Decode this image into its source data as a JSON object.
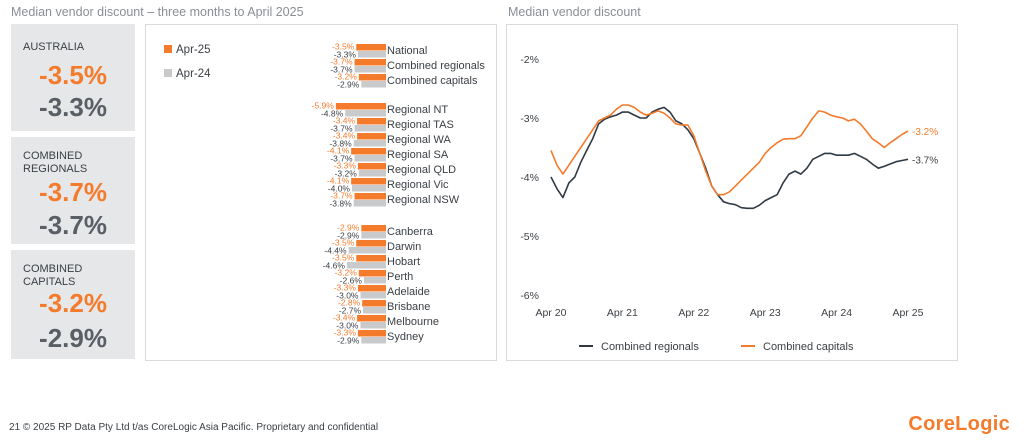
{
  "page": {
    "left_title": "Median vendor discount – three months to April 2025",
    "right_title": "Median vendor discount",
    "footer": "21   © 2025 RP Data Pty Ltd t/as CoreLogic Asia Pacific. Proprietary and confidential",
    "logo": "CoreLogic"
  },
  "kpis": [
    {
      "label": "AUSTRALIA",
      "current": "-3.5%",
      "previous": "-3.3%"
    },
    {
      "label": "COMBINED REGIONALS",
      "current": "-3.7%",
      "previous": "-3.7%"
    },
    {
      "label": "COMBINED CAPITALS",
      "current": "-3.2%",
      "previous": "-2.9%"
    }
  ],
  "colors": {
    "orange": "#f47b2c",
    "grey": "#c9cacc",
    "dark": "#2f3a44"
  },
  "chart_data": [
    {
      "type": "bar",
      "orientation": "horizontal",
      "legend": [
        "Apr-25",
        "Apr-24"
      ],
      "legend_position": "top-left",
      "groups": [
        [
          "National",
          "Combined regionals",
          "Combined capitals"
        ],
        [
          "Regional NT",
          "Regional TAS",
          "Regional WA",
          "Regional SA",
          "Regional QLD",
          "Regional Vic",
          "Regional NSW"
        ],
        [
          "Canberra",
          "Darwin",
          "Hobart",
          "Perth",
          "Adelaide",
          "Brisbane",
          "Melbourne",
          "Sydney"
        ]
      ],
      "series": [
        {
          "name": "Apr-25",
          "values": [
            -3.5,
            -3.7,
            -3.2,
            -5.9,
            -3.4,
            -3.4,
            -4.1,
            -3.3,
            -4.1,
            -3.7,
            -2.9,
            -3.5,
            -3.5,
            -3.2,
            -3.3,
            -2.8,
            -3.4,
            -3.3
          ]
        },
        {
          "name": "Apr-24",
          "values": [
            -3.3,
            -3.7,
            -2.9,
            -4.8,
            -3.7,
            -3.8,
            -3.7,
            -3.2,
            -4.0,
            -3.8,
            -2.9,
            -4.4,
            -4.6,
            -2.6,
            -3.0,
            -2.7,
            -3.0,
            -2.9
          ]
        }
      ],
      "value_labels": {
        "Apr-25": [
          "-3.5%",
          "-3.7%",
          "-3.2%",
          "-5.9%",
          "-3.4%",
          "-3.4%",
          "-4.1%",
          "-3.3%",
          "-4.1%",
          "-3.7%",
          "-2.9%",
          "-3.5%",
          "-3.5%",
          "-3.2%",
          "-3.3%",
          "-2.8%",
          "-3.4%",
          "-3.3%"
        ],
        "Apr-24": [
          "-3.3%",
          "-3.7%",
          "-2.9%",
          "-4.8%",
          "-3.7%",
          "-3.8%",
          "-3.7%",
          "-3.2%",
          "-4.0%",
          "-3.8%",
          "-2.9%",
          "-4.4%",
          "-4.6%",
          "-2.6%",
          "-3.0%",
          "-2.7%",
          "-3.0%",
          "-2.9%"
        ]
      }
    },
    {
      "type": "line",
      "x_ticks": [
        "Apr 20",
        "Apr 21",
        "Apr 22",
        "Apr 23",
        "Apr 24",
        "Apr 25"
      ],
      "y_ticks": [
        "-2%",
        "-3%",
        "-4%",
        "-5%",
        "-6%"
      ],
      "ylim": [
        -6,
        -2
      ],
      "xlim": [
        0,
        60
      ],
      "legend_position": "bottom",
      "series": [
        {
          "name": "Combined regionals",
          "end_label": "-3.7%",
          "x": [
            0,
            1,
            2,
            3,
            4,
            5,
            6,
            7,
            8,
            9,
            10,
            11,
            12,
            13,
            14,
            15,
            16,
            17,
            18,
            19,
            20,
            21,
            22,
            23,
            24,
            25,
            26,
            27,
            28,
            29,
            30,
            31,
            32,
            33,
            34,
            35,
            36,
            37,
            38,
            39,
            40,
            41,
            42,
            43,
            44,
            45,
            46,
            47,
            48,
            49,
            50,
            51,
            52,
            53,
            54,
            55,
            56,
            57,
            58,
            59,
            60
          ],
          "y": [
            -4.0,
            -4.2,
            -4.35,
            -4.1,
            -4.0,
            -3.75,
            -3.55,
            -3.35,
            -3.1,
            -3.02,
            -2.98,
            -2.95,
            -2.9,
            -2.9,
            -2.95,
            -3.0,
            -3.0,
            -2.9,
            -2.85,
            -2.82,
            -2.9,
            -3.05,
            -3.1,
            -3.2,
            -3.35,
            -3.6,
            -3.85,
            -4.15,
            -4.3,
            -4.42,
            -4.45,
            -4.47,
            -4.52,
            -4.53,
            -4.53,
            -4.48,
            -4.4,
            -4.35,
            -4.3,
            -4.1,
            -3.95,
            -3.9,
            -3.95,
            -3.85,
            -3.7,
            -3.65,
            -3.6,
            -3.6,
            -3.63,
            -3.63,
            -3.63,
            -3.6,
            -3.65,
            -3.7,
            -3.78,
            -3.85,
            -3.82,
            -3.78,
            -3.74,
            -3.72,
            -3.7
          ]
        },
        {
          "name": "Combined capitals",
          "end_label": "-3.2%",
          "x": [
            0,
            1,
            2,
            3,
            4,
            5,
            6,
            7,
            8,
            9,
            10,
            11,
            12,
            13,
            14,
            15,
            16,
            17,
            18,
            19,
            20,
            21,
            22,
            23,
            24,
            25,
            26,
            27,
            28,
            29,
            30,
            31,
            32,
            33,
            34,
            35,
            36,
            37,
            38,
            39,
            40,
            41,
            42,
            43,
            44,
            45,
            46,
            47,
            48,
            49,
            50,
            51,
            52,
            53,
            54,
            55,
            56,
            57,
            58,
            59,
            60
          ],
          "y": [
            -3.55,
            -3.8,
            -3.95,
            -3.8,
            -3.65,
            -3.5,
            -3.35,
            -3.2,
            -3.05,
            -3.0,
            -2.95,
            -2.85,
            -2.78,
            -2.78,
            -2.82,
            -2.9,
            -2.95,
            -2.92,
            -2.88,
            -2.92,
            -3.0,
            -3.1,
            -3.12,
            -3.12,
            -3.3,
            -3.6,
            -3.9,
            -4.15,
            -4.3,
            -4.3,
            -4.25,
            -4.15,
            -4.05,
            -3.95,
            -3.85,
            -3.75,
            -3.6,
            -3.5,
            -3.42,
            -3.36,
            -3.35,
            -3.35,
            -3.3,
            -3.15,
            -3.0,
            -2.88,
            -2.9,
            -2.95,
            -2.98,
            -3.0,
            -3.05,
            -3.02,
            -3.1,
            -3.22,
            -3.35,
            -3.42,
            -3.5,
            -3.42,
            -3.35,
            -3.28,
            -3.22
          ]
        }
      ]
    }
  ]
}
